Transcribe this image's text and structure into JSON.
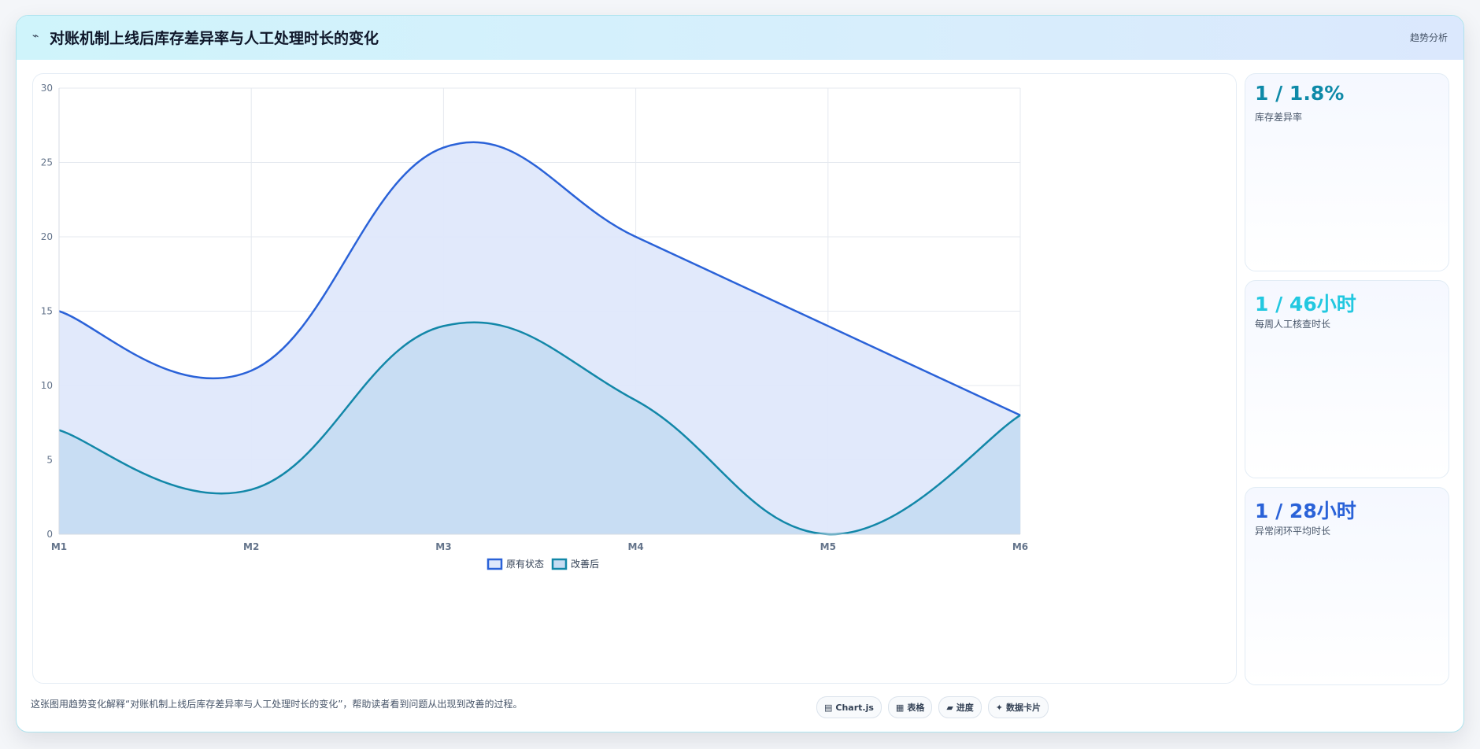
{
  "header": {
    "icon": "trend-line-icon",
    "title": "对账机制上线后库存差异率与人工处理时长的变化",
    "tag": "趋势分析"
  },
  "colors": {
    "series_original": "#2a62d8",
    "series_original_fill": "#dfe8fb",
    "series_improved": "#1287a8",
    "series_improved_fill": "#c6dcf2",
    "kpi_1": "#0e8aa8",
    "kpi_2": "#22c8e0",
    "kpi_3": "#2a62d8"
  },
  "chart_data": {
    "type": "area",
    "categories": [
      "M1",
      "M2",
      "M3",
      "M4",
      "M5",
      "M6"
    ],
    "series": [
      {
        "name": "原有状态",
        "values": [
          15,
          11,
          26,
          20,
          14,
          8
        ]
      },
      {
        "name": "改善后",
        "values": [
          7,
          3,
          14,
          9,
          0,
          8
        ]
      }
    ],
    "ylim": [
      0,
      30
    ],
    "yticks": [
      0,
      5,
      10,
      15,
      20,
      25,
      30
    ],
    "grid": true,
    "legend": "bottom",
    "xlabel": "",
    "ylabel": "",
    "title": ""
  },
  "stats": [
    {
      "value": "1 / 1.8%",
      "label": "库存差异率"
    },
    {
      "value": "1 / 46小时",
      "label": "每周人工核查时长"
    },
    {
      "value": "1 / 28小时",
      "label": "异常闭环平均时长"
    }
  ],
  "footer": {
    "description": "这张图用趋势变化解释“对账机制上线后库存差异率与人工处理时长的变化”，帮助读者看到问题从出现到改善的过程。",
    "chips": [
      {
        "icon": "chart-icon",
        "label": "Chart.js"
      },
      {
        "icon": "table-icon",
        "label": "表格"
      },
      {
        "icon": "progress-icon",
        "label": "进度"
      },
      {
        "icon": "sparkle-icon",
        "label": "数据卡片"
      }
    ]
  }
}
